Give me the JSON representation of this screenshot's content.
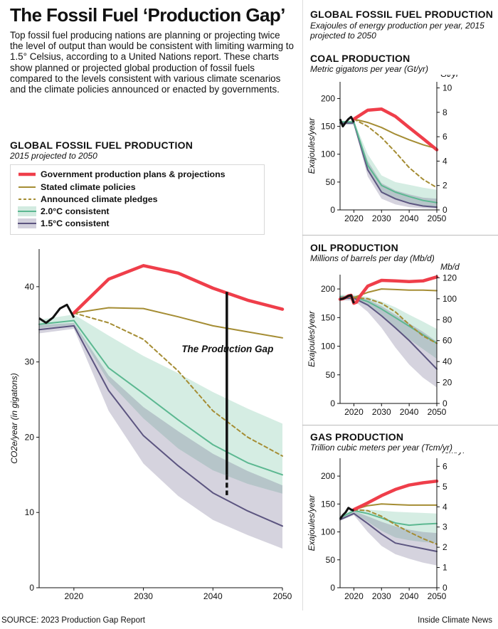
{
  "title": "The Fossil Fuel ‘Production Gap’",
  "intro": "Top fossil fuel producing nations are planning or projecting twice the level of output than would be consistent with limiting warming to 1.5° Celsius, according to a United Nations report. These charts show planned or projected global production of fossil fuels compared to the levels consistent with various climate scenarios and the climate policies announced or enacted by governments.",
  "main_section": {
    "title": "GLOBAL FOSSIL FUEL PRODUCTION",
    "subtitle": "2015 projected to 2050"
  },
  "right_section": {
    "title": "GLOBAL FOSSIL FUEL PRODUCTION",
    "subtitle": "Exajoules of energy production per year, 2015 projected to 2050"
  },
  "legend": [
    {
      "label": "Government production plans & projections",
      "color": "#ef3e4a",
      "style": "line"
    },
    {
      "label": "Stated climate policies",
      "color": "#a58d34",
      "style": "line"
    },
    {
      "label": "Announced climate pledges",
      "color": "#a58d34",
      "style": "dashed"
    },
    {
      "label": "2.0°C consistent",
      "color": "#5cb891",
      "style": "band"
    },
    {
      "label": "1.5°C consistent",
      "color": "#5c5580",
      "style": "band"
    }
  ],
  "gap_label": "The Production Gap",
  "source": "SOURCE: 2023 Production Gap Report",
  "credit": "Inside Climate News",
  "colors": {
    "production": "#ef3e4a",
    "stated": "#a58d34",
    "pledges": "#a58d34",
    "band20": "#5cb891",
    "band15": "#5c5580",
    "history": "#111111"
  },
  "chart_data": [
    {
      "id": "main",
      "type": "line",
      "title": "GLOBAL FOSSIL FUEL PRODUCTION",
      "subtitle": "2015 projected to 2050",
      "ylabel": "CO2e/year (in gigatons)",
      "xlim": [
        2015,
        2050
      ],
      "ylim": [
        0,
        45
      ],
      "xticks": [
        2020,
        2030,
        2040,
        2050
      ],
      "yticks": [
        0,
        10,
        20,
        30,
        40
      ],
      "history": {
        "x": [
          2015,
          2016,
          2017,
          2018,
          2019,
          2020
        ],
        "y": [
          35.8,
          35.2,
          35.9,
          37.1,
          37.6,
          35.9
        ]
      },
      "series": [
        {
          "name": "Government production plans & projections",
          "key": "production",
          "x": [
            2020,
            2025,
            2030,
            2035,
            2040,
            2045,
            2050
          ],
          "y": [
            36.5,
            41.0,
            42.8,
            41.8,
            39.8,
            38.2,
            37.0
          ]
        },
        {
          "name": "Stated climate policies",
          "key": "stated",
          "x": [
            2020,
            2025,
            2030,
            2035,
            2040,
            2045,
            2050
          ],
          "y": [
            36.5,
            37.2,
            37.1,
            36.0,
            34.8,
            34.0,
            33.2
          ]
        },
        {
          "name": "Announced climate pledges",
          "key": "pledges",
          "x": [
            2020,
            2025,
            2030,
            2035,
            2040,
            2045,
            2050
          ],
          "y": [
            36.5,
            35.2,
            33.0,
            28.8,
            23.5,
            20.0,
            17.5
          ]
        },
        {
          "name": "2.0°C consistent",
          "key": "c20",
          "x": [
            2015,
            2020,
            2025,
            2030,
            2035,
            2040,
            2045,
            2050
          ],
          "y": [
            35.0,
            35.5,
            29.2,
            25.8,
            22.3,
            19.0,
            16.6,
            15.0
          ]
        },
        {
          "name": "1.5°C consistent",
          "key": "c15",
          "x": [
            2015,
            2020,
            2025,
            2030,
            2035,
            2040,
            2045,
            2050
          ],
          "y": [
            34.3,
            34.8,
            26.2,
            20.2,
            16.2,
            12.6,
            10.2,
            8.2
          ]
        }
      ],
      "bands": [
        {
          "key": "c20",
          "x": [
            2015,
            2020,
            2025,
            2030,
            2035,
            2040,
            2045,
            2050
          ],
          "low": [
            34.5,
            34.9,
            27.4,
            22.5,
            18.5,
            15.6,
            13.8,
            12.5
          ],
          "high": [
            35.6,
            36.3,
            33.5,
            30.8,
            28.5,
            26.0,
            23.8,
            21.8
          ]
        },
        {
          "key": "c15",
          "x": [
            2015,
            2020,
            2025,
            2030,
            2035,
            2040,
            2045,
            2050
          ],
          "low": [
            33.8,
            34.4,
            23.5,
            16.5,
            12.2,
            9.0,
            7.0,
            5.2
          ],
          "high": [
            34.9,
            35.2,
            28.2,
            24.0,
            20.8,
            17.8,
            15.5,
            13.6
          ]
        }
      ],
      "gap": {
        "x": 2042,
        "y_top": 39.3,
        "y_dash_from": 15.0,
        "y_bottom": 12.3
      }
    },
    {
      "id": "coal",
      "type": "line",
      "title": "COAL PRODUCTION",
      "subtitle": "Metric gigatons per year (Gt/yr)",
      "ylabel": "Exajoules/year",
      "y2unit": "Gt/yr",
      "xlim": [
        2015,
        2050
      ],
      "ylim": [
        0,
        230
      ],
      "y2lim": [
        0,
        10.5
      ],
      "xticks": [
        2020,
        2030,
        2040,
        2050
      ],
      "yticks": [
        0,
        50,
        100,
        150,
        200
      ],
      "y2ticks": [
        0,
        2,
        4,
        6,
        8,
        10
      ],
      "history": {
        "x": [
          2015,
          2016,
          2017,
          2018,
          2019,
          2020
        ],
        "y": [
          163,
          150,
          157,
          163,
          167,
          157
        ]
      },
      "series": [
        {
          "name": "Government production plans & projections",
          "key": "production",
          "x": [
            2020,
            2025,
            2030,
            2035,
            2040,
            2045,
            2050
          ],
          "y": [
            163,
            179,
            181,
            168,
            148,
            128,
            108
          ]
        },
        {
          "name": "Stated climate policies",
          "key": "stated",
          "x": [
            2020,
            2025,
            2030,
            2035,
            2040,
            2045,
            2050
          ],
          "y": [
            163,
            157,
            148,
            136,
            126,
            117,
            110
          ]
        },
        {
          "name": "Announced climate pledges",
          "key": "pledges",
          "x": [
            2020,
            2025,
            2030,
            2035,
            2040,
            2045,
            2050
          ],
          "y": [
            163,
            150,
            130,
            104,
            76,
            55,
            40
          ]
        },
        {
          "name": "2.0°C consistent",
          "key": "c20",
          "x": [
            2015,
            2020,
            2025,
            2030,
            2035,
            2040,
            2045,
            2050
          ],
          "y": [
            158,
            158,
            80,
            44,
            32,
            24,
            17,
            13
          ]
        },
        {
          "name": "1.5°C consistent",
          "key": "c15",
          "x": [
            2015,
            2020,
            2025,
            2030,
            2035,
            2040,
            2045,
            2050
          ],
          "y": [
            156,
            156,
            72,
            32,
            20,
            12,
            7,
            5
          ]
        }
      ],
      "bands": [
        {
          "key": "c20",
          "x": [
            2015,
            2020,
            2025,
            2030,
            2035,
            2040,
            2045,
            2050
          ],
          "low": [
            154,
            154,
            70,
            30,
            18,
            12,
            8,
            6
          ],
          "high": [
            160,
            160,
            100,
            62,
            50,
            45,
            40,
            36
          ]
        },
        {
          "key": "c15",
          "x": [
            2015,
            2020,
            2025,
            2030,
            2035,
            2040,
            2045,
            2050
          ],
          "low": [
            153,
            153,
            60,
            20,
            10,
            5,
            3,
            2
          ],
          "high": [
            158,
            158,
            88,
            48,
            35,
            28,
            22,
            20
          ]
        }
      ]
    },
    {
      "id": "oil",
      "type": "line",
      "title": "OIL PRODUCTION",
      "subtitle": "Millions of barrels per day (Mb/d)",
      "ylabel": "Exajoules/year",
      "y2unit": "Mb/d",
      "xlim": [
        2015,
        2050
      ],
      "ylim": [
        0,
        225
      ],
      "y2lim": [
        0,
        123
      ],
      "xticks": [
        2020,
        2030,
        2040,
        2050
      ],
      "yticks": [
        0,
        50,
        100,
        150,
        200
      ],
      "y2ticks": [
        0,
        20,
        40,
        60,
        80,
        100,
        120
      ],
      "history": {
        "x": [
          2015,
          2016,
          2017,
          2018,
          2019,
          2020
        ],
        "y": [
          182,
          183,
          185,
          188,
          189,
          175
        ]
      },
      "series": [
        {
          "name": "Government production plans & projections",
          "key": "production",
          "x": [
            2015,
            2016,
            2017,
            2018,
            2019,
            2020,
            2021,
            2022,
            2025,
            2030,
            2035,
            2040,
            2045,
            2050
          ],
          "y": [
            182,
            183,
            185,
            188,
            189,
            175,
            177,
            186,
            205,
            215,
            214,
            213,
            214,
            221
          ]
        },
        {
          "name": "Stated climate policies",
          "key": "stated",
          "x": [
            2020,
            2025,
            2030,
            2035,
            2040,
            2045,
            2050
          ],
          "y": [
            185,
            194,
            200,
            199,
            198,
            198,
            197
          ]
        },
        {
          "name": "Announced climate pledges",
          "key": "pledges",
          "x": [
            2020,
            2025,
            2030,
            2035,
            2040,
            2045,
            2050
          ],
          "y": [
            185,
            183,
            175,
            160,
            138,
            118,
            105
          ]
        },
        {
          "name": "2.0°C consistent",
          "key": "c20",
          "x": [
            2015,
            2020,
            2025,
            2030,
            2035,
            2040,
            2045,
            2050
          ],
          "y": [
            186,
            186,
            178,
            165,
            150,
            135,
            120,
            105
          ]
        },
        {
          "name": "1.5°C consistent",
          "key": "c15",
          "x": [
            2015,
            2020,
            2025,
            2030,
            2035,
            2040,
            2045,
            2050
          ],
          "y": [
            184,
            184,
            172,
            153,
            132,
            110,
            85,
            60
          ]
        }
      ],
      "bands": [
        {
          "key": "c20",
          "x": [
            2015,
            2020,
            2025,
            2030,
            2035,
            2040,
            2045,
            2050
          ],
          "low": [
            182,
            182,
            170,
            152,
            132,
            112,
            95,
            78
          ],
          "high": [
            190,
            190,
            186,
            178,
            168,
            155,
            143,
            130
          ]
        },
        {
          "key": "c15",
          "x": [
            2015,
            2020,
            2025,
            2030,
            2035,
            2040,
            2045,
            2050
          ],
          "low": [
            180,
            180,
            160,
            132,
            98,
            68,
            45,
            28
          ],
          "high": [
            188,
            188,
            182,
            170,
            155,
            140,
            125,
            108
          ]
        }
      ]
    },
    {
      "id": "gas",
      "type": "line",
      "title": "GAS PRODUCTION",
      "subtitle": "Trillion cubic meters per year (Tcm/yr)",
      "ylabel": "Exajoules/year",
      "y2unit": "Tcm/yr",
      "xlim": [
        2015,
        2050
      ],
      "ylim": [
        0,
        232
      ],
      "y2lim": [
        0,
        6.4
      ],
      "xticks": [
        2020,
        2030,
        2040,
        2050
      ],
      "yticks": [
        0,
        50,
        100,
        150,
        200
      ],
      "y2ticks": [
        0,
        1,
        2,
        3,
        4,
        5,
        6
      ],
      "history": {
        "x": [
          2015,
          2016,
          2017,
          2018,
          2019,
          2020
        ],
        "y": [
          123,
          130,
          135,
          143,
          140,
          138
        ]
      },
      "series": [
        {
          "name": "Government production plans & projections",
          "key": "production",
          "x": [
            2020,
            2025,
            2030,
            2035,
            2040,
            2045,
            2050
          ],
          "y": [
            140,
            152,
            165,
            176,
            184,
            188,
            191
          ]
        },
        {
          "name": "Stated climate policies",
          "key": "stated",
          "x": [
            2020,
            2025,
            2030,
            2035,
            2040,
            2045,
            2050
          ],
          "y": [
            140,
            147,
            150,
            149,
            148,
            148,
            148
          ]
        },
        {
          "name": "Announced climate pledges",
          "key": "pledges",
          "x": [
            2020,
            2025,
            2030,
            2035,
            2040,
            2045,
            2050
          ],
          "y": [
            140,
            138,
            128,
            113,
            100,
            88,
            78
          ]
        },
        {
          "name": "2.0°C consistent",
          "key": "c20",
          "x": [
            2015,
            2020,
            2025,
            2030,
            2035,
            2040,
            2045,
            2050
          ],
          "y": [
            125,
            138,
            133,
            125,
            116,
            112,
            114,
            115
          ]
        },
        {
          "name": "1.5°C consistent",
          "key": "c15",
          "x": [
            2015,
            2020,
            2025,
            2030,
            2035,
            2040,
            2045,
            2050
          ],
          "y": [
            122,
            133,
            115,
            96,
            80,
            75,
            70,
            65
          ]
        }
      ],
      "bands": [
        {
          "key": "c20",
          "x": [
            2015,
            2020,
            2025,
            2030,
            2035,
            2040,
            2045,
            2050
          ],
          "low": [
            122,
            134,
            118,
            102,
            90,
            85,
            82,
            80
          ],
          "high": [
            127,
            142,
            140,
            138,
            136,
            135,
            134,
            133
          ]
        },
        {
          "key": "c15",
          "x": [
            2015,
            2020,
            2025,
            2030,
            2035,
            2040,
            2045,
            2050
          ],
          "low": [
            120,
            130,
            100,
            75,
            60,
            52,
            45,
            40
          ],
          "high": [
            125,
            137,
            128,
            118,
            110,
            104,
            100,
            98
          ]
        }
      ]
    }
  ]
}
